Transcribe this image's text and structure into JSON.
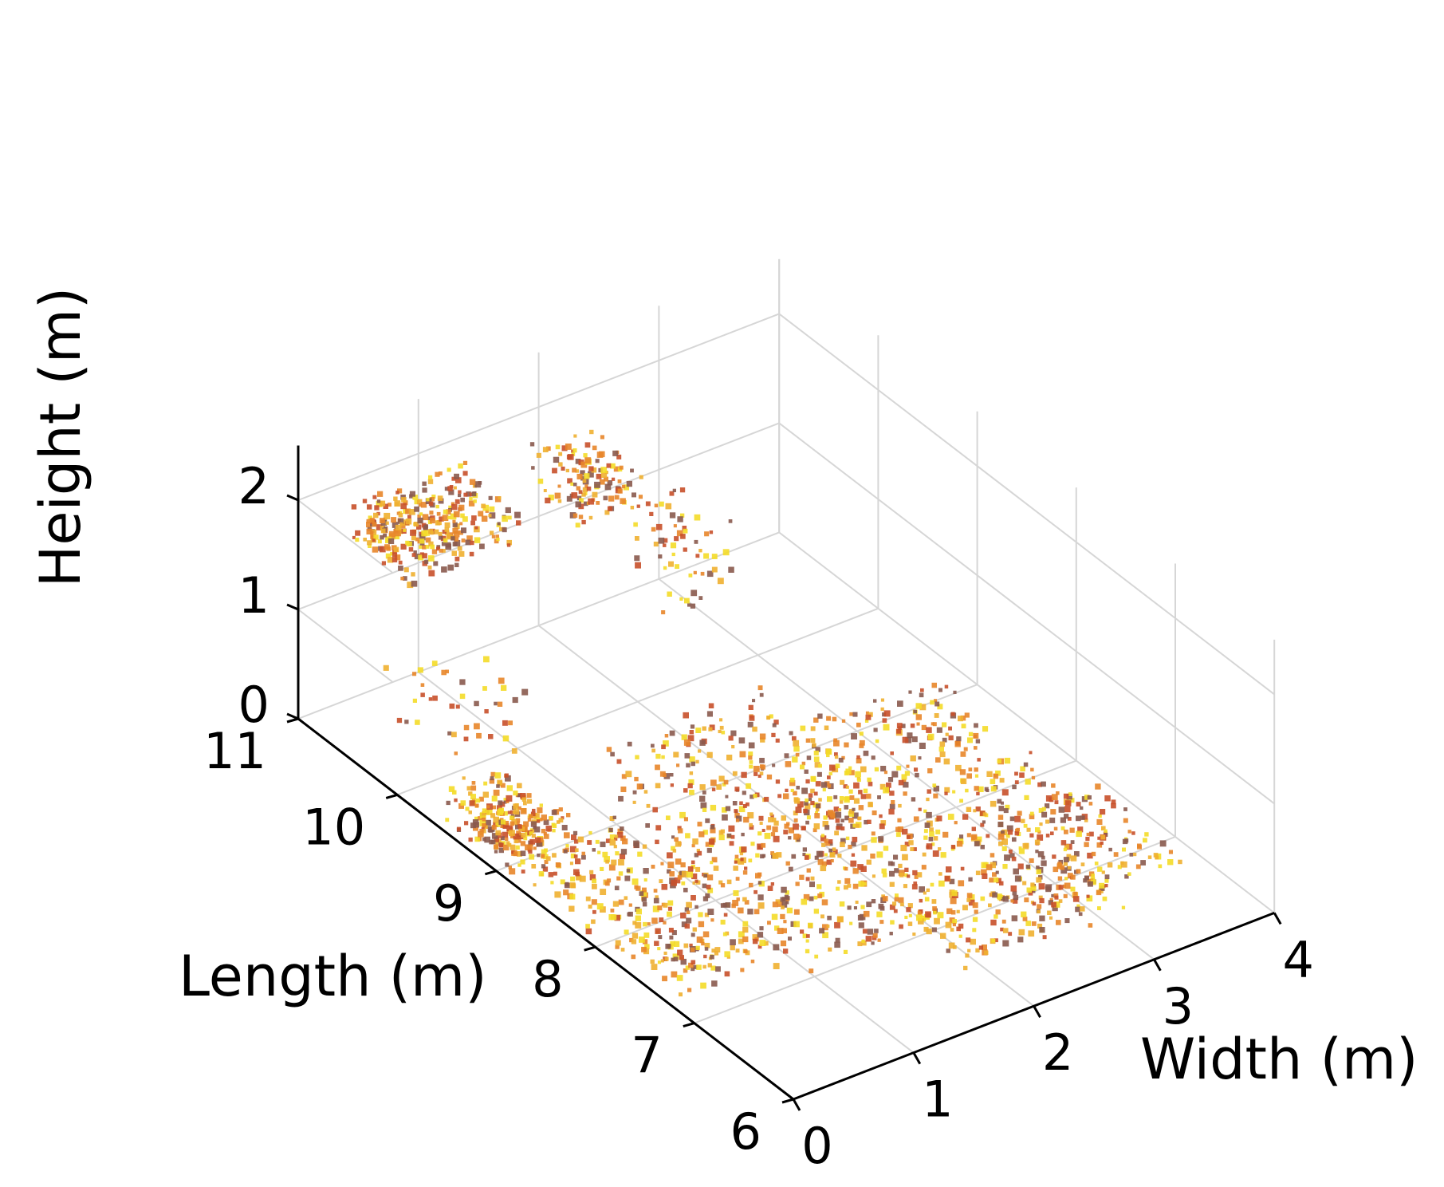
{
  "chart_data": {
    "type": "scatter",
    "title": "",
    "xlabel": "Width (m)",
    "ylabel": "Length (m)",
    "zlabel": "Height (m)",
    "xlim": [
      0,
      4
    ],
    "ylim": [
      6,
      11
    ],
    "zlim": [
      0,
      2.5
    ],
    "xticks": [
      "0",
      "1",
      "2",
      "3",
      "4"
    ],
    "yticks": [
      "6",
      "7",
      "8",
      "9",
      "10",
      "11"
    ],
    "zticks": [
      "0",
      "1",
      "2"
    ],
    "grid": true,
    "projection": "3d",
    "colormap": [
      "#8a5a4e",
      "#c8502a",
      "#e8862a",
      "#f0b030",
      "#f4dc28"
    ],
    "series": [
      {
        "clusters": [
          {
            "x": [
              0.35,
              0.75
            ],
            "y": [
              10.3,
              10.9
            ],
            "z": [
              1.5,
              1.9
            ],
            "n": 170
          },
          {
            "x": [
              0.75,
              1.3
            ],
            "y": [
              10.3,
              10.9
            ],
            "z": [
              1.5,
              1.9
            ],
            "n": 150
          },
          {
            "x": [
              1.8,
              2.3
            ],
            "y": [
              10.3,
              10.85
            ],
            "z": [
              1.4,
              1.85
            ],
            "n": 120
          },
          {
            "x": [
              2.6,
              3.1
            ],
            "y": [
              10.3,
              10.9
            ],
            "z": [
              0.2,
              1.0
            ],
            "n": 60
          },
          {
            "x": [
              0.2,
              0.8
            ],
            "y": [
              9.6,
              10.4
            ],
            "z": [
              0.3,
              0.9
            ],
            "n": 40
          },
          {
            "x": [
              0.05,
              0.55
            ],
            "y": [
              8.9,
              9.6
            ],
            "z": [
              0.0,
              0.35
            ],
            "n": 250
          },
          {
            "x": [
              0.05,
              1.0
            ],
            "y": [
              7.2,
              8.9
            ],
            "z": [
              0.0,
              0.3
            ],
            "n": 330
          },
          {
            "x": [
              1.0,
              2.4
            ],
            "y": [
              7.0,
              8.6
            ],
            "z": [
              0.0,
              0.25
            ],
            "n": 330
          },
          {
            "x": [
              1.2,
              2.6
            ],
            "y": [
              8.0,
              9.5
            ],
            "z": [
              0.0,
              0.3
            ],
            "n": 260
          },
          {
            "x": [
              2.4,
              3.6
            ],
            "y": [
              7.4,
              9.0
            ],
            "z": [
              0.0,
              0.3
            ],
            "n": 300
          },
          {
            "x": [
              2.6,
              3.8
            ],
            "y": [
              6.6,
              7.6
            ],
            "z": [
              0.0,
              0.2
            ],
            "n": 200
          },
          {
            "x": [
              1.8,
              3.2
            ],
            "y": [
              6.5,
              7.3
            ],
            "z": [
              0.0,
              0.2
            ],
            "n": 150
          }
        ]
      }
    ]
  }
}
